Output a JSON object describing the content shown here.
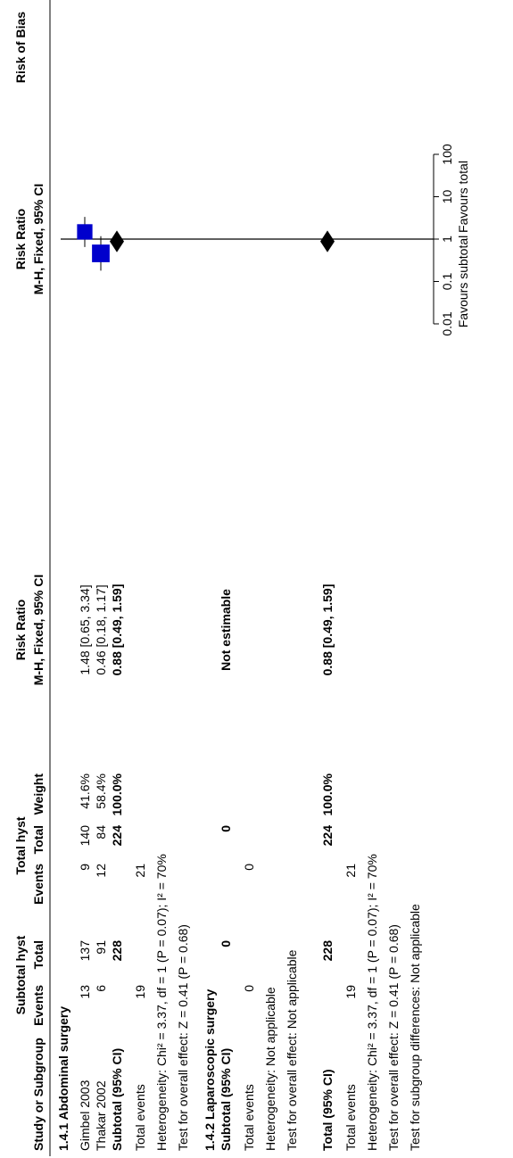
{
  "header": {
    "group1": "Subtotal hyst",
    "group2": "Total hyst",
    "rr_group": "Risk Ratio",
    "rr_plot_group": "Risk Ratio",
    "rob": "Risk of Bias",
    "col_study": "Study or Subgroup",
    "col_events1": "Events",
    "col_total1": "Total",
    "col_events2": "Events",
    "col_total2": "Total",
    "col_weight": "Weight",
    "col_method": "M-H, Fixed, 95% CI",
    "col_plot_method": "M-H, Fixed, 95% CI"
  },
  "subgroups": [
    {
      "title": "1.4.1 Abdominal surgery",
      "studies": [
        {
          "name": "Gimbel 2003",
          "events1": "13",
          "total1": "137",
          "events2": "9",
          "total2": "140",
          "weight": "41.6%",
          "ci": "1.48 [0.65, 3.34]"
        },
        {
          "name": "Thakar 2002",
          "events1": "6",
          "total1": "91",
          "events2": "12",
          "total2": "84",
          "weight": "58.4%",
          "ci": "0.46 [0.18, 1.17]"
        }
      ],
      "subtotal": {
        "label": "Subtotal (95% CI)",
        "total1": "228",
        "total2": "224",
        "weight": "100.0%",
        "ci": "0.88 [0.49, 1.59]"
      },
      "total_events": {
        "label": "Total events",
        "events1": "19",
        "events2": "21"
      },
      "heterogeneity": "Heterogeneity: Chi² = 3.37, df = 1 (P = 0.07); I² = 70%",
      "overall_test": "Test for overall effect: Z = 0.41 (P = 0.68)"
    },
    {
      "title": "1.4.2 Laparoscopic surgery",
      "subtotal": {
        "label": "Subtotal (95% CI)",
        "total1": "0",
        "total2": "0",
        "ci": "Not estimable"
      },
      "total_events": {
        "label": "Total events",
        "events1": "0",
        "events2": "0"
      },
      "heterogeneity": "Heterogeneity: Not applicable",
      "overall_test": "Test for overall effect: Not applicable"
    }
  ],
  "overall": {
    "label": "Total (95% CI)",
    "total1": "228",
    "total2": "224",
    "weight": "100.0%",
    "ci": "0.88 [0.49, 1.59]",
    "total_events": {
      "label": "Total events",
      "events1": "19",
      "events2": "21"
    },
    "heterogeneity": "Heterogeneity: Chi² = 3.37, df = 1 (P = 0.07); I² = 70%",
    "overall_test": "Test for overall effect: Z = 0.41 (P = 0.68)",
    "subgroup_test": "Test for subgroup differences: Not applicable"
  },
  "axis": {
    "ticks": [
      0.01,
      0.1,
      1,
      10,
      100
    ],
    "tick_labels": [
      "0.01",
      "0.1",
      "1",
      "10",
      "100"
    ],
    "favours_left": "Favours subtotal",
    "favours_right": "Favours total"
  },
  "chart_data": {
    "type": "forest",
    "scale": "log",
    "xlim": [
      0.01,
      100
    ],
    "reference_line": 1,
    "marker_color": "#0000cc",
    "studies": [
      {
        "name": "Gimbel 2003",
        "rr": 1.48,
        "ci_low": 0.65,
        "ci_high": 3.34,
        "weight": 41.6
      },
      {
        "name": "Thakar 2002",
        "rr": 0.46,
        "ci_low": 0.18,
        "ci_high": 1.17,
        "weight": 58.4
      }
    ],
    "diamonds": [
      {
        "name": "Subtotal (95% CI)",
        "rr": 0.88,
        "ci_low": 0.49,
        "ci_high": 1.59
      },
      {
        "name": "Total (95% CI)",
        "rr": 0.88,
        "ci_low": 0.49,
        "ci_high": 1.59
      }
    ]
  }
}
